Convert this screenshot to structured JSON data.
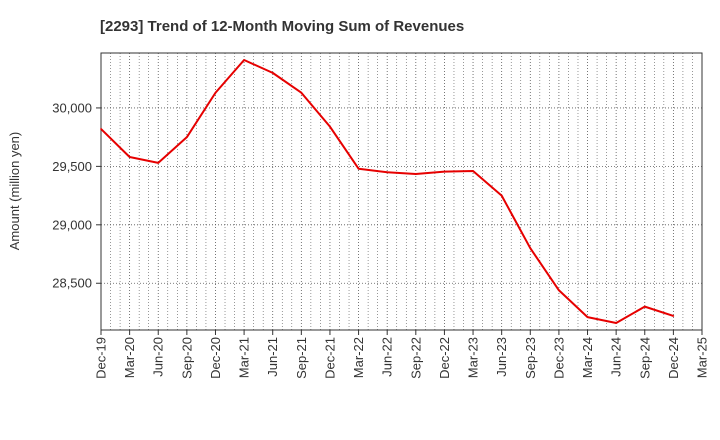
{
  "chart_data": {
    "type": "line",
    "title": "[2293]  Trend of 12-Month Moving Sum of Revenues",
    "xlabel": "",
    "ylabel": "Amount (million yen)",
    "categories": [
      "Dec-19",
      "Mar-20",
      "Jun-20",
      "Sep-20",
      "Dec-20",
      "Mar-21",
      "Jun-21",
      "Sep-21",
      "Dec-21",
      "Mar-22",
      "Jun-22",
      "Sep-22",
      "Dec-22",
      "Mar-23",
      "Jun-23",
      "Sep-23",
      "Dec-23",
      "Mar-24",
      "Jun-24",
      "Sep-24",
      "Dec-24",
      "Mar-25"
    ],
    "series": [
      {
        "color": "#e60000",
        "values": [
          29820,
          29580,
          29530,
          29750,
          30130,
          30410,
          30300,
          30130,
          29840,
          29480,
          29450,
          29435,
          29455,
          29460,
          29250,
          28800,
          28440,
          28210,
          28160,
          28300,
          28220,
          null
        ]
      }
    ],
    "ylim": [
      28100,
      30470
    ],
    "yticks": [
      28500,
      29000,
      29500,
      30000
    ],
    "ytick_labels": [
      "28,500",
      "29,000",
      "29,500",
      "30,000"
    ],
    "grid": true,
    "legend": "none"
  }
}
